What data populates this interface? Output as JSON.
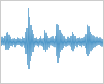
{
  "chart_data": {
    "type": "line",
    "x": [
      0,
      1,
      2,
      3,
      4,
      5,
      6,
      7,
      8,
      9,
      10,
      11,
      12,
      13,
      14,
      15,
      16,
      17,
      18,
      19,
      20,
      21,
      22,
      23,
      24,
      25,
      26,
      27,
      28,
      29,
      30,
      31,
      32,
      33,
      34,
      35,
      36,
      37,
      38,
      39,
      40,
      41,
      42,
      43,
      44,
      45,
      46,
      47,
      48,
      49,
      50,
      51,
      52,
      53,
      54,
      55,
      56,
      57,
      58,
      59,
      60,
      61,
      62,
      63,
      64,
      65,
      66,
      67,
      68,
      69,
      70,
      71,
      72,
      73,
      74,
      75,
      76,
      77,
      78,
      79,
      80,
      81,
      82,
      83,
      84,
      85,
      86,
      87,
      88,
      89,
      90,
      91,
      92,
      93,
      94,
      95,
      96,
      97,
      98,
      99,
      100,
      101,
      102,
      103,
      104,
      105,
      106,
      107,
      108,
      109,
      110,
      111,
      112,
      113,
      114,
      115,
      116,
      117,
      118,
      119,
      120,
      121,
      122,
      123,
      124,
      125,
      126,
      127,
      128,
      129,
      130,
      131,
      132,
      133,
      134,
      135,
      136,
      137,
      138,
      139,
      140,
      141,
      142,
      143,
      144,
      145,
      146,
      147,
      148,
      149
    ],
    "values": [
      0.08,
      -0.1,
      0.12,
      -0.07,
      0.1,
      -0.09,
      0.15,
      -0.2,
      0.22,
      -0.18,
      0.25,
      -0.2,
      0.17,
      -0.15,
      0.12,
      -0.1,
      0.08,
      -0.11,
      0.09,
      -0.07,
      0.1,
      -0.12,
      0.08,
      -0.09,
      0.11,
      -0.08,
      0.1,
      -0.07,
      0.09,
      -0.1,
      0.08,
      -0.11,
      0.12,
      -0.09,
      0.1,
      -0.13,
      0.25,
      -0.3,
      0.35,
      -0.55,
      0.82,
      -0.65,
      0.6,
      -0.45,
      0.4,
      -0.35,
      0.3,
      -0.25,
      0.2,
      -0.12,
      0.1,
      -0.09,
      0.11,
      -0.1,
      0.08,
      -0.12,
      0.1,
      -0.09,
      0.13,
      -0.1,
      0.09,
      -0.11,
      0.1,
      -0.2,
      0.28,
      -0.25,
      0.22,
      -0.18,
      0.15,
      -0.12,
      0.1,
      -0.13,
      0.11,
      -0.09,
      0.12,
      -0.1,
      0.13,
      -0.11,
      0.09,
      -0.12,
      0.15,
      -0.35,
      0.43,
      -0.5,
      0.4,
      -0.38,
      0.3,
      -0.25,
      0.22,
      -0.2,
      0.18,
      -0.15,
      0.13,
      -0.1,
      0.09,
      -0.11,
      0.08,
      -0.1,
      0.12,
      -0.09,
      0.1,
      -0.11,
      0.14,
      -0.2,
      0.25,
      -0.22,
      0.2,
      -0.16,
      0.14,
      -0.1,
      0.09,
      -0.12,
      0.1,
      -0.08,
      0.11,
      -0.1,
      0.09,
      -0.12,
      0.1,
      -0.09,
      0.11,
      -0.1,
      0.12,
      -0.14,
      0.18,
      -0.3,
      0.42,
      -0.35,
      0.38,
      -0.3,
      0.25,
      -0.22,
      0.2,
      -0.18,
      0.16,
      -0.15,
      0.13,
      -0.12,
      0.11,
      -0.1,
      0.12,
      -0.09,
      0.1,
      -0.08,
      0.11,
      -0.1,
      0.09,
      -0.11,
      0.08,
      -0.1
    ],
    "color": "#4f98c9",
    "xlim": [
      0,
      149
    ],
    "ylim": [
      -1,
      1
    ],
    "tick_labels": false
  }
}
